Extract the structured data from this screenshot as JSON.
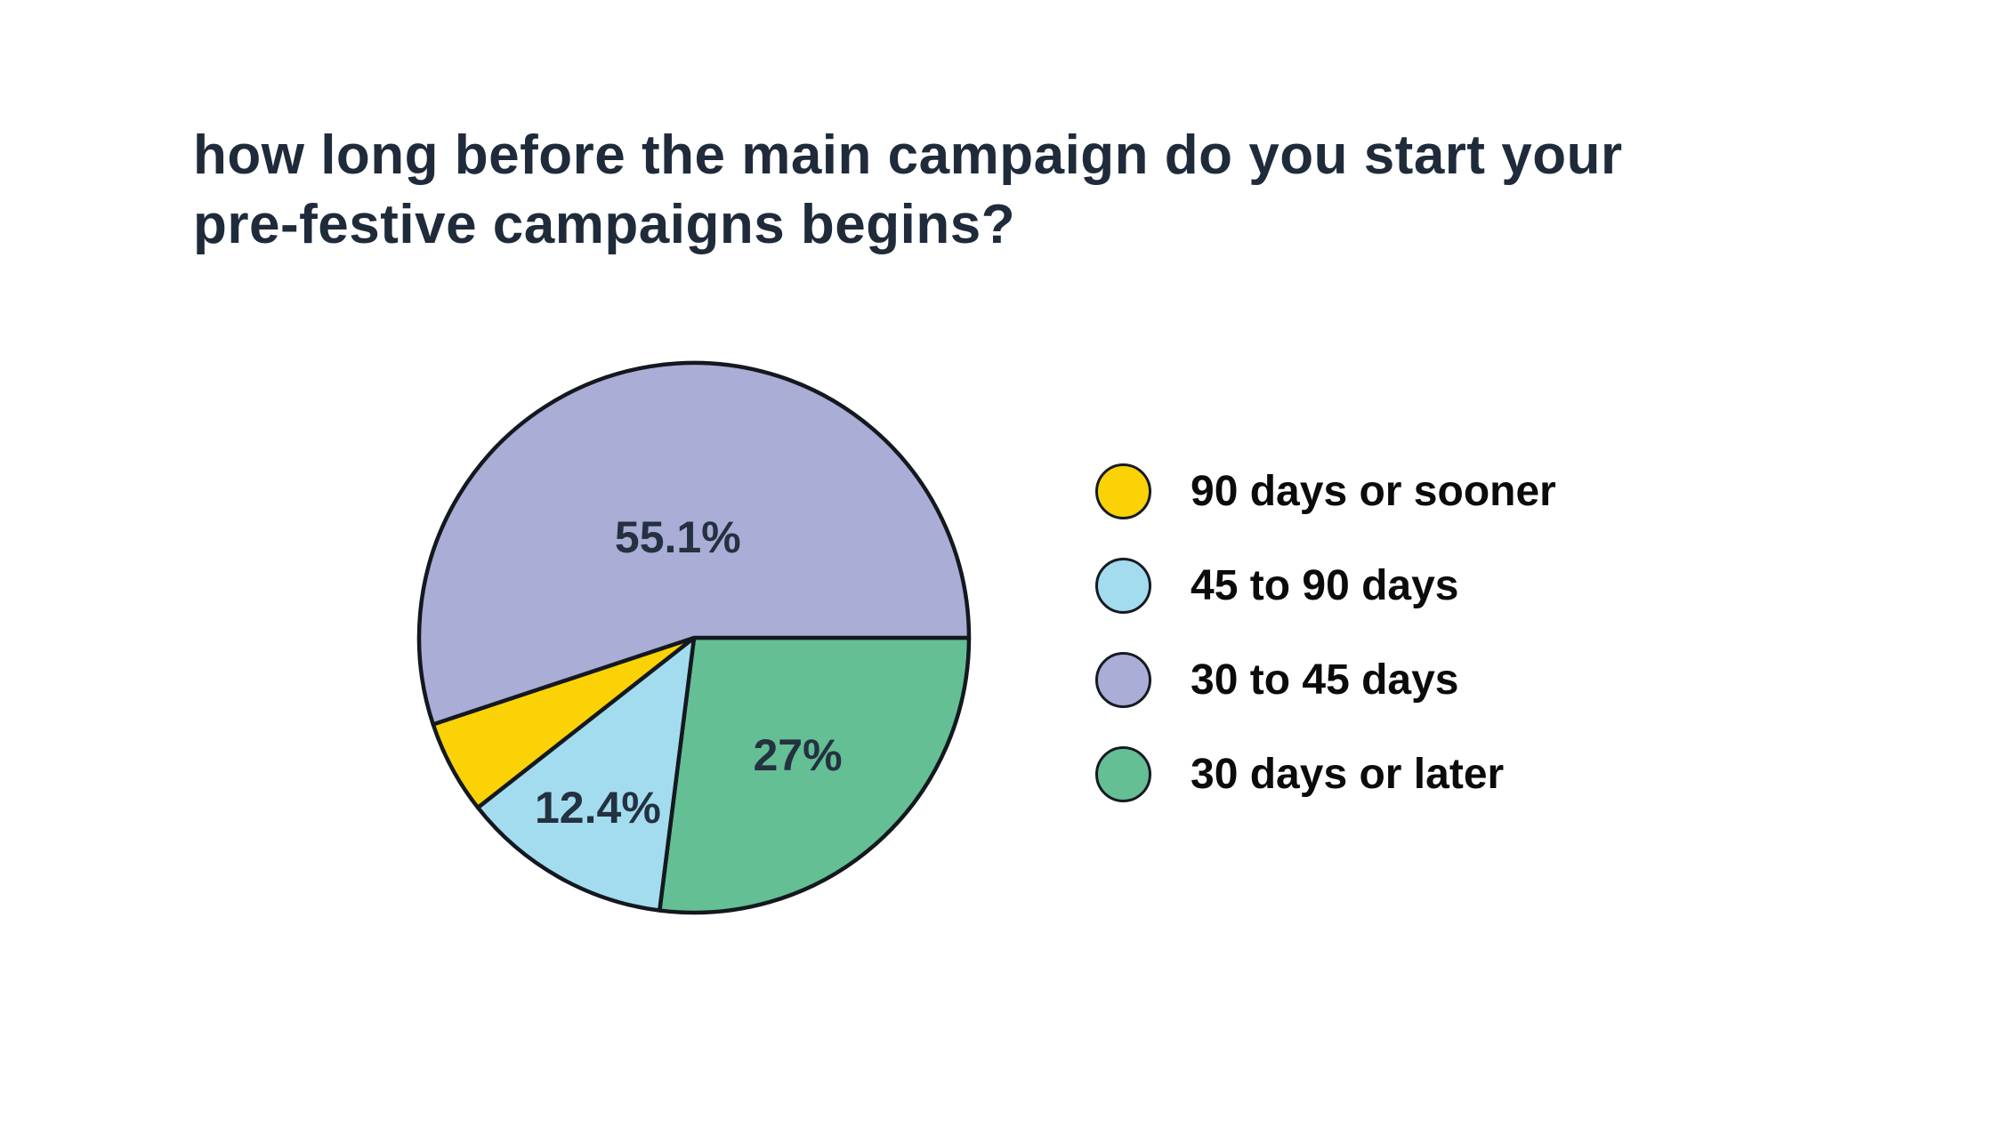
{
  "page": {
    "background_color": "#ffffff"
  },
  "title": {
    "line1": "how long before the main campaign do you start your",
    "line2": "pre-festive campaigns begins?",
    "color": "#1f2b3a"
  },
  "chart_data": {
    "type": "pie",
    "title": "how long before the main campaign do you start your pre-festive campaigns begins?",
    "unit": "%",
    "legend_position": "right",
    "slices": [
      {
        "label": "90 days or sooner",
        "value": 5.5,
        "color": "#fad206",
        "pie_label": ""
      },
      {
        "label": "45 to 90 days",
        "value": 12.4,
        "color": "#a3dcee",
        "pie_label": "12.4%"
      },
      {
        "label": "30 to 45 days",
        "value": 55.1,
        "color": "#aaadd5",
        "pie_label": "55.1%"
      },
      {
        "label": "30 days or later",
        "value": 27,
        "color": "#64bf94",
        "pie_label": "27%"
      }
    ],
    "layout": {
      "start_angle_deg": 0,
      "clockwise": true,
      "draw_order": [
        3,
        1,
        0,
        2
      ],
      "label_radius": [
        0,
        0.71,
        0.37,
        0.57
      ],
      "outline_color": "#14181f",
      "outline_width": 4.5,
      "label_color": "#233140"
    }
  }
}
